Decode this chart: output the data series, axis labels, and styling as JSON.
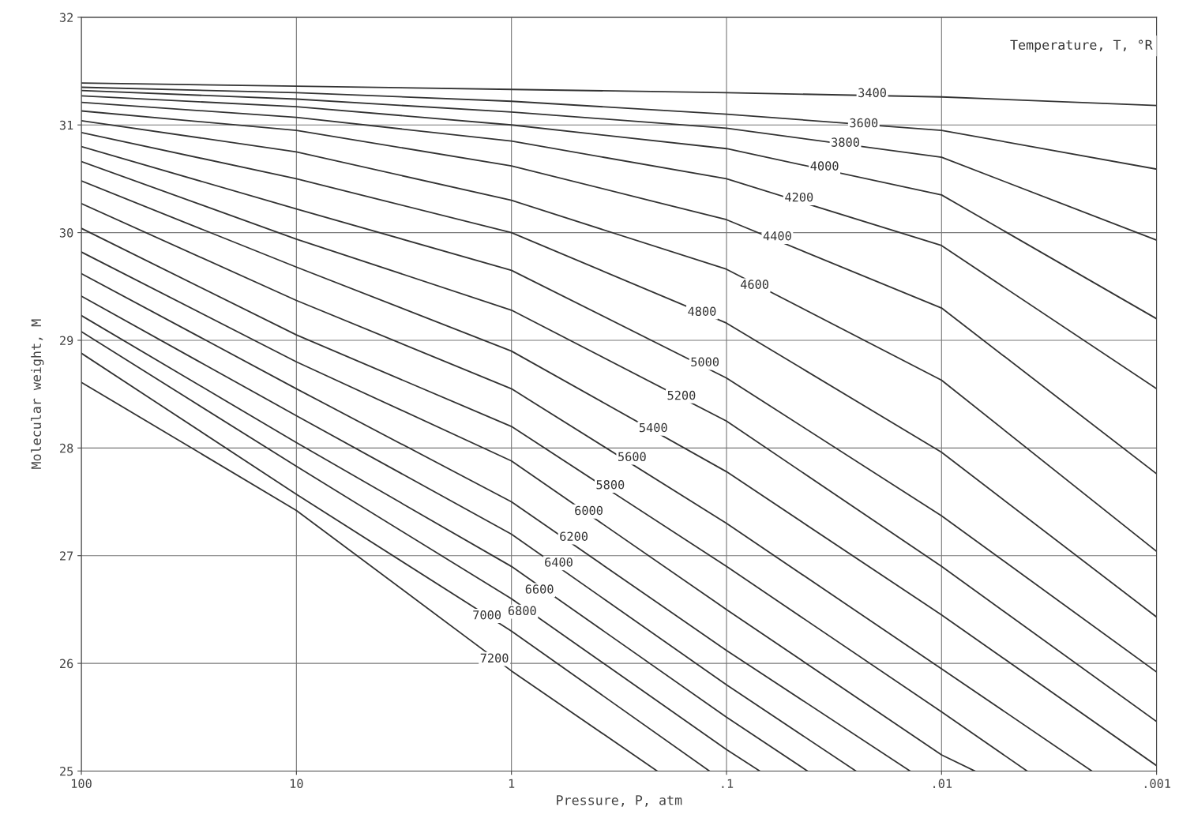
{
  "chart_data": {
    "type": "line",
    "xlabel": "Pressure, P, atm",
    "ylabel": "Molecular weight, M",
    "legend_title": "Temperature, T, °R",
    "log": "x",
    "xlim": [
      100,
      0.001
    ],
    "xticks": [
      100,
      10,
      1,
      {
        "value": 0.1,
        "label": ".1"
      },
      {
        "value": 0.01,
        "label": ".01"
      },
      {
        "value": 0.001,
        "label": ".001"
      }
    ],
    "ylim": [
      25,
      32
    ],
    "yticks": [
      25,
      26,
      27,
      28,
      29,
      30,
      31,
      32
    ],
    "grid": true,
    "marker": "none",
    "line_style": "solid",
    "series": [
      {
        "color": "#333333",
        "x": [
          100,
          10,
          1,
          0.1,
          0.01,
          0.001
        ],
        "values": [
          31.39,
          31.36,
          31.33,
          31.3,
          31.26,
          31.18
        ]
      },
      {
        "color": "#333333",
        "x": [
          100,
          10,
          1,
          0.1,
          0.01,
          0.001
        ],
        "values": [
          31.35,
          31.3,
          31.22,
          31.1,
          30.95,
          30.59
        ]
      },
      {
        "color": "#333333",
        "x": [
          100,
          10,
          1,
          0.1,
          0.01,
          0.001
        ],
        "values": [
          31.32,
          31.24,
          31.12,
          30.97,
          30.7,
          29.93
        ]
      },
      {
        "color": "#333333",
        "x": [
          100,
          10,
          1,
          0.1,
          0.01,
          0.001
        ],
        "values": [
          31.27,
          31.17,
          31.0,
          30.78,
          30.35,
          29.2
        ]
      },
      {
        "color": "#333333",
        "x": [
          100,
          10,
          1,
          0.1,
          0.01,
          0.001
        ],
        "values": [
          31.21,
          31.07,
          30.85,
          30.5,
          29.88,
          28.55
        ]
      },
      {
        "color": "#333333",
        "x": [
          100,
          10,
          1,
          0.1,
          0.01,
          0.001
        ],
        "values": [
          31.13,
          30.95,
          30.62,
          30.12,
          29.3,
          27.76
        ]
      },
      {
        "color": "#333333",
        "x": [
          100,
          10,
          1,
          0.1,
          0.01,
          0.001
        ],
        "values": [
          31.04,
          30.75,
          30.3,
          29.66,
          28.63,
          27.04
        ]
      },
      {
        "color": "#333333",
        "x": [
          100,
          10,
          1,
          0.1,
          0.01,
          0.001
        ],
        "values": [
          30.93,
          30.5,
          30.0,
          29.16,
          27.96,
          26.43
        ]
      },
      {
        "color": "#333333",
        "x": [
          100,
          10,
          1,
          0.1,
          0.01,
          0.001
        ],
        "values": [
          30.8,
          30.22,
          29.65,
          28.65,
          27.37,
          25.92
        ]
      },
      {
        "color": "#333333",
        "x": [
          100,
          10,
          1,
          0.1,
          0.01,
          0.001
        ],
        "values": [
          30.66,
          29.94,
          29.28,
          28.25,
          26.9,
          25.46
        ]
      },
      {
        "color": "#333333",
        "x": [
          100,
          10,
          1,
          0.1,
          0.01,
          0.001
        ],
        "values": [
          30.48,
          29.68,
          28.9,
          27.78,
          26.45,
          25.05
        ]
      },
      {
        "color": "#333333",
        "x": [
          100,
          10,
          1,
          0.1,
          0.01,
          0.002
        ],
        "values": [
          30.27,
          29.37,
          28.55,
          27.3,
          25.95,
          25.0
        ]
      },
      {
        "color": "#333333",
        "x": [
          100,
          10,
          1,
          0.1,
          0.01,
          0.004
        ],
        "values": [
          30.04,
          29.05,
          28.2,
          26.9,
          25.55,
          25.0
        ]
      },
      {
        "color": "#333333",
        "x": [
          100,
          10,
          1,
          0.1,
          0.01,
          0.007
        ],
        "values": [
          29.82,
          28.8,
          27.88,
          26.5,
          25.15,
          25.0
        ]
      },
      {
        "color": "#333333",
        "x": [
          100,
          10,
          1,
          0.1,
          0.014
        ],
        "values": [
          29.62,
          28.55,
          27.5,
          26.12,
          25.0
        ]
      },
      {
        "color": "#333333",
        "x": [
          100,
          10,
          1,
          0.1,
          0.025
        ],
        "values": [
          29.41,
          28.3,
          27.2,
          25.8,
          25.0
        ]
      },
      {
        "color": "#333333",
        "x": [
          100,
          10,
          1,
          0.1,
          0.042
        ],
        "values": [
          29.23,
          28.05,
          26.9,
          25.5,
          25.0
        ]
      },
      {
        "color": "#333333",
        "x": [
          100,
          10,
          1,
          0.1,
          0.07
        ],
        "values": [
          29.08,
          27.83,
          26.6,
          25.2,
          25.0
        ]
      },
      {
        "color": "#333333",
        "x": [
          100,
          10,
          1,
          0.12
        ],
        "values": [
          28.88,
          27.57,
          26.3,
          25.0
        ]
      },
      {
        "color": "#333333",
        "x": [
          100,
          10,
          1,
          0.21
        ],
        "values": [
          28.61,
          27.42,
          25.93,
          25.0
        ]
      }
    ],
    "annotations": [
      {
        "text": "3400",
        "x": 0.021,
        "y": 31.29
      },
      {
        "text": "3600",
        "x": 0.023,
        "y": 31.01
      },
      {
        "text": "3800",
        "x": 0.028,
        "y": 30.83
      },
      {
        "text": "4000",
        "x": 0.035,
        "y": 30.61
      },
      {
        "text": "4200",
        "x": 0.046,
        "y": 30.32
      },
      {
        "text": "4400",
        "x": 0.058,
        "y": 29.96
      },
      {
        "text": "4600",
        "x": 0.074,
        "y": 29.51
      },
      {
        "text": "4800",
        "x": 0.13,
        "y": 29.26
      },
      {
        "text": "5000",
        "x": 0.126,
        "y": 28.79
      },
      {
        "text": "5200",
        "x": 0.162,
        "y": 28.48
      },
      {
        "text": "5400",
        "x": 0.219,
        "y": 28.18
      },
      {
        "text": "5600",
        "x": 0.275,
        "y": 27.91
      },
      {
        "text": "5800",
        "x": 0.347,
        "y": 27.65
      },
      {
        "text": "6000",
        "x": 0.437,
        "y": 27.41
      },
      {
        "text": "6200",
        "x": 0.513,
        "y": 27.17
      },
      {
        "text": "6400",
        "x": 0.603,
        "y": 26.93
      },
      {
        "text": "6600",
        "x": 0.741,
        "y": 26.68
      },
      {
        "text": "6800",
        "x": 0.891,
        "y": 26.48
      },
      {
        "text": "7000",
        "x": 1.3,
        "y": 26.44
      },
      {
        "text": "7200",
        "x": 1.2,
        "y": 26.04
      }
    ]
  }
}
